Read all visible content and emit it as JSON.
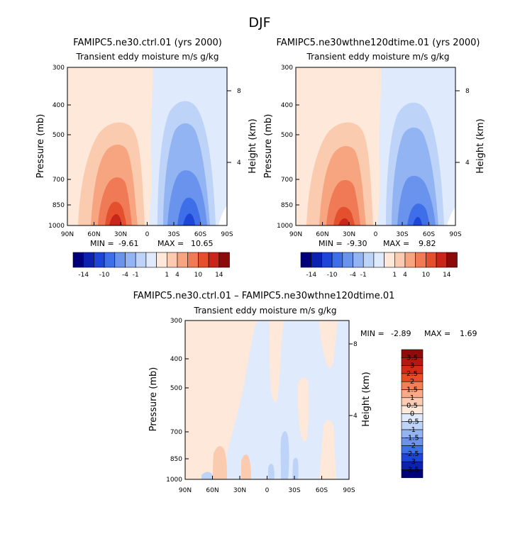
{
  "figure_title": "DJF",
  "colorbar_labels_main": [
    "-14",
    "-10",
    "-4",
    "-1",
    "1",
    "4",
    "10",
    "14"
  ],
  "colorbar_labels_diff": [
    "3.5",
    "3",
    "2.5",
    "2",
    "1.5",
    "1",
    "0.5",
    "0",
    "-0.5",
    "-1",
    "-1.5",
    "-2",
    "-2.5",
    "-3",
    "-3.5"
  ],
  "colors": {
    "main_palette": [
      "#00007a",
      "#0b22b0",
      "#1d45d8",
      "#3f6fe8",
      "#6a93ee",
      "#93b4f3",
      "#bed3f8",
      "#dfeafd",
      "#fde8da",
      "#fbcbb0",
      "#f7a580",
      "#f07a55",
      "#e4502e",
      "#c8261a",
      "#8b0a0a"
    ],
    "diff_palette": [
      "#8e0d0b",
      "#b5180e",
      "#d32c16",
      "#e84d26",
      "#f47f52",
      "#f9a985",
      "#fccbb1",
      "#fde8da",
      "#dfeafd",
      "#bed3f8",
      "#93b4f3",
      "#6a93ee",
      "#3f6fe8",
      "#1d45d8",
      "#0b22b0",
      "#00007a"
    ]
  },
  "chart_data": [
    {
      "type": "heatmap",
      "title": "FAMIPC5.ne30.ctrl.01 (yrs 2000)",
      "subtitle": "Transient eddy moisture m/s g/kg",
      "ylabel": "Pressure (mb)",
      "ylabel_right": "Height (km)",
      "x_ticks": [
        "90N",
        "60N",
        "30N",
        "0",
        "30S",
        "60S",
        "90S"
      ],
      "y_ticks": [
        "300",
        "400",
        "500",
        "700",
        "850",
        "1000"
      ],
      "y_ticks_right": [
        "8",
        "4"
      ],
      "min_label": "MIN =",
      "min": "-9.61",
      "max_label": "MAX =",
      "max": "10.65",
      "ylim": [
        1000,
        300
      ],
      "xlim": [
        90,
        -90
      ],
      "features": [
        {
          "lat": 37,
          "p": 920,
          "value": 10.65,
          "sign": "positive"
        },
        {
          "lat": -45,
          "p": 900,
          "value": -9.61,
          "sign": "negative"
        }
      ]
    },
    {
      "type": "heatmap",
      "title": "FAMIPC5.ne30wthne120dtime.01 (yrs 2000)",
      "subtitle": "Transient eddy moisture m/s g/kg",
      "ylabel": "Pressure (mb)",
      "ylabel_right": "Height (km)",
      "x_ticks": [
        "90N",
        "60N",
        "30N",
        "0",
        "30S",
        "60S",
        "90S"
      ],
      "y_ticks": [
        "300",
        "400",
        "500",
        "700",
        "850",
        "1000"
      ],
      "y_ticks_right": [
        "8",
        "4"
      ],
      "min_label": "MIN =",
      "min": "-9.30",
      "max_label": "MAX =",
      "max": "9.82",
      "ylim": [
        1000,
        300
      ],
      "xlim": [
        90,
        -90
      ],
      "features": [
        {
          "lat": 37,
          "p": 920,
          "value": 9.82,
          "sign": "positive"
        },
        {
          "lat": -45,
          "p": 900,
          "value": -9.3,
          "sign": "negative"
        }
      ]
    },
    {
      "type": "heatmap",
      "title": "FAMIPC5.ne30.ctrl.01 – FAMIPC5.ne30wthne120dtime.01",
      "subtitle": "Transient eddy moisture m/s g/kg",
      "ylabel": "Pressure (mb)",
      "ylabel_right": "Height (km)",
      "x_ticks": [
        "90N",
        "60N",
        "30N",
        "0",
        "30S",
        "60S",
        "90S"
      ],
      "y_ticks": [
        "300",
        "400",
        "500",
        "700",
        "850",
        "1000"
      ],
      "y_ticks_right": [
        "8",
        "4"
      ],
      "min_label": "MIN =",
      "min": "-2.89",
      "max_label": "MAX =",
      "max": "1.69",
      "ylim": [
        1000,
        300
      ],
      "xlim": [
        90,
        -90
      ]
    }
  ]
}
